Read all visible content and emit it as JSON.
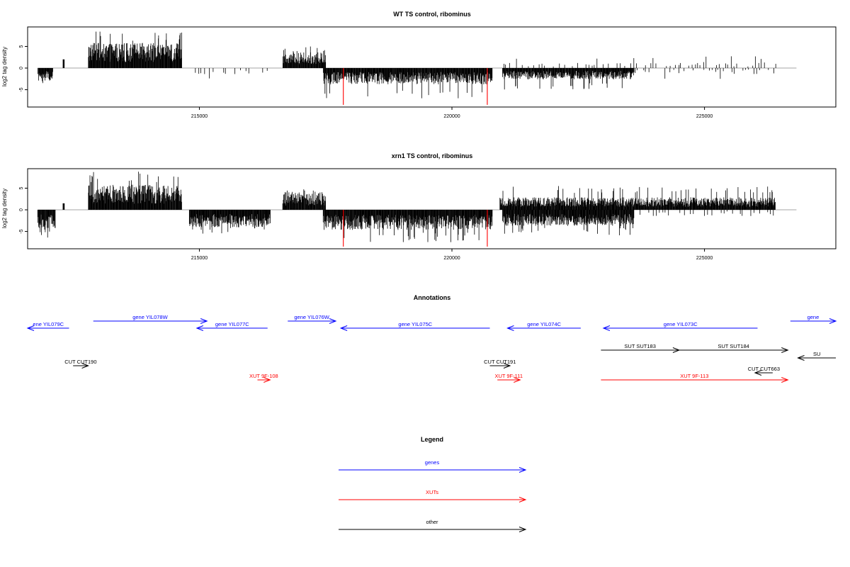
{
  "chart_data": [
    {
      "type": "bar",
      "title": "WT TS control, ribominus",
      "xlabel": "",
      "ylabel": "log2 tag density",
      "xlim": [
        211600,
        227600
      ],
      "ylim": [
        -9,
        9.5
      ],
      "x_ticks": [
        215000,
        220000,
        225000
      ],
      "y_ticks": [
        -5,
        0,
        5
      ],
      "x_tick_labels": [
        "215000",
        "220000",
        "225000"
      ],
      "y_tick_labels": [
        "-5",
        "0",
        "5"
      ],
      "grid": false,
      "baseline": 0,
      "profile": "WT",
      "forward_strand_segments": [
        {
          "start": 212300,
          "end": 212330,
          "mean": 2.0
        },
        {
          "start": 212800,
          "end": 214650,
          "mean": 4.0,
          "peak": 9.0
        },
        {
          "start": 216650,
          "end": 217500,
          "mean": 2.5,
          "peak": 5.0
        },
        {
          "start": 221000,
          "end": 226400,
          "mean": 1.0,
          "peak": 3.0,
          "sparse": true
        }
      ],
      "reverse_strand_segments": [
        {
          "start": 211800,
          "end": 212100,
          "mean": -2.0,
          "peak": -3.5
        },
        {
          "start": 214800,
          "end": 216400,
          "mean": -1.0,
          "peak": -2.5,
          "sparse": true
        },
        {
          "start": 217450,
          "end": 220800,
          "mean": -2.6,
          "peak": -7.0
        },
        {
          "start": 221000,
          "end": 223600,
          "mean": -1.8,
          "peak": -5.0
        },
        {
          "start": 223600,
          "end": 226400,
          "mean": -1.0,
          "peak": -2.5,
          "sparse": true
        }
      ],
      "highlighted_bars": [
        {
          "x": 217850,
          "value": -8.5,
          "color": "#ff0000"
        },
        {
          "x": 220700,
          "value": -8.5,
          "color": "#ff0000"
        }
      ]
    },
    {
      "type": "bar",
      "title": "xrn1 TS control, ribominus",
      "xlabel": "",
      "ylabel": "log2 tag density",
      "xlim": [
        211600,
        227600
      ],
      "ylim": [
        -9,
        9.5
      ],
      "x_ticks": [
        215000,
        220000,
        225000
      ],
      "y_ticks": [
        -5,
        0,
        5
      ],
      "x_tick_labels": [
        "215000",
        "220000",
        "225000"
      ],
      "y_tick_labels": [
        "-5",
        "0",
        "5"
      ],
      "grid": false,
      "baseline": 0,
      "profile": "xrn1",
      "forward_strand_segments": [
        {
          "start": 212300,
          "end": 212330,
          "mean": 1.5
        },
        {
          "start": 212800,
          "end": 214650,
          "mean": 4.0,
          "peak": 9.0
        },
        {
          "start": 216650,
          "end": 217500,
          "mean": 2.8,
          "peak": 5.5
        },
        {
          "start": 220950,
          "end": 226400,
          "mean": 2.0,
          "peak": 5.5
        }
      ],
      "reverse_strand_segments": [
        {
          "start": 211800,
          "end": 212150,
          "mean": -3.0,
          "peak": -6.5
        },
        {
          "start": 214800,
          "end": 216400,
          "mean": -2.8,
          "peak": -5.5
        },
        {
          "start": 217450,
          "end": 220800,
          "mean": -3.2,
          "peak": -7.5
        },
        {
          "start": 221000,
          "end": 223600,
          "mean": -2.6,
          "peak": -6.0
        },
        {
          "start": 223600,
          "end": 226400,
          "mean": -1.0,
          "peak": -3.0,
          "sparse": true
        }
      ],
      "highlighted_bars": [
        {
          "x": 217850,
          "value": -8.5,
          "color": "#ff0000"
        },
        {
          "x": 220700,
          "value": -8.5,
          "color": "#ff0000"
        }
      ]
    },
    {
      "type": "annotation_track",
      "title": "Annotations",
      "xlim": [
        211600,
        227600
      ],
      "features": [
        {
          "label": "ene YIL079C",
          "start": 211600,
          "end": 212420,
          "strand": "-",
          "category": "genes",
          "row": 2
        },
        {
          "label": "gene YIL078W",
          "start": 212900,
          "end": 215150,
          "strand": "+",
          "category": "genes",
          "row": 1
        },
        {
          "label": "gene YIL077C",
          "start": 214950,
          "end": 216350,
          "strand": "-",
          "category": "genes",
          "row": 2
        },
        {
          "label": "gene YIL076W",
          "start": 216750,
          "end": 217700,
          "strand": "+",
          "category": "genes",
          "row": 1
        },
        {
          "label": "gene YIL075C",
          "start": 217800,
          "end": 220750,
          "strand": "-",
          "category": "genes",
          "row": 2
        },
        {
          "label": "gene YIL074C",
          "start": 221100,
          "end": 222550,
          "strand": "-",
          "category": "genes",
          "row": 2
        },
        {
          "label": "gene YIL073C",
          "start": 223000,
          "end": 226050,
          "strand": "-",
          "category": "genes",
          "row": 2
        },
        {
          "label": "gene",
          "start": 226700,
          "end": 227600,
          "strand": "+",
          "category": "genes",
          "row": 1
        },
        {
          "label": "SUT SUT183",
          "start": 222950,
          "end": 224500,
          "strand": "+",
          "category": "other",
          "row": 3
        },
        {
          "label": "SUT SUT184",
          "start": 224500,
          "end": 226650,
          "strand": "+",
          "category": "other",
          "row": 3
        },
        {
          "label": "SU",
          "start": 226850,
          "end": 227600,
          "strand": "-",
          "category": "other",
          "row": 4
        },
        {
          "label": "CUT CUT190",
          "start": 212500,
          "end": 212800,
          "strand": "+",
          "category": "other",
          "row": 5
        },
        {
          "label": "CUT CUT191",
          "start": 220750,
          "end": 221150,
          "strand": "+",
          "category": "other",
          "row": 5
        },
        {
          "label": "CUT CUT663",
          "start": 226000,
          "end": 226350,
          "strand": "-",
          "category": "other",
          "row": 6
        },
        {
          "label": "XUT 9F-108",
          "start": 216150,
          "end": 216400,
          "strand": "+",
          "category": "XUTs",
          "row": 7
        },
        {
          "label": "XUT 9F-111",
          "start": 220900,
          "end": 221350,
          "strand": "+",
          "category": "XUTs",
          "row": 7
        },
        {
          "label": "XUT 9F-113",
          "start": 222950,
          "end": 226650,
          "strand": "+",
          "category": "XUTs",
          "row": 7
        }
      ]
    },
    {
      "type": "legend",
      "title": "Legend",
      "entries": [
        {
          "label": "genes",
          "color": "#0000ff"
        },
        {
          "label": "XUTs",
          "color": "#ff0000"
        },
        {
          "label": "other",
          "color": "#000000"
        }
      ]
    }
  ],
  "colors": {
    "genes": "#0000ff",
    "XUTs": "#ff0000",
    "other": "#000000",
    "highlight": "#ff0000",
    "baseline": "#888888"
  }
}
